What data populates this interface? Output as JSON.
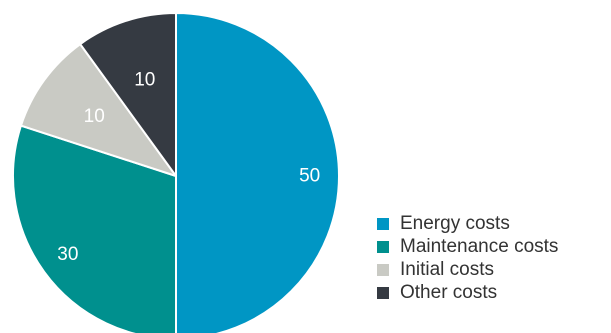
{
  "chart_data": {
    "type": "pie",
    "title": "",
    "start_angle_deg": 0,
    "direction": "clockwise",
    "slices": [
      {
        "label": "Energy costs",
        "value": 50,
        "color": "#0096c4"
      },
      {
        "label": "Maintenance costs",
        "value": 30,
        "color": "#00908e"
      },
      {
        "label": "Initial costs",
        "value": 10,
        "color": "#c9cac4"
      },
      {
        "label": "Other costs",
        "value": 10,
        "color": "#353a42"
      }
    ],
    "data_labels_shown": true,
    "legend_position": "bottom-right"
  }
}
